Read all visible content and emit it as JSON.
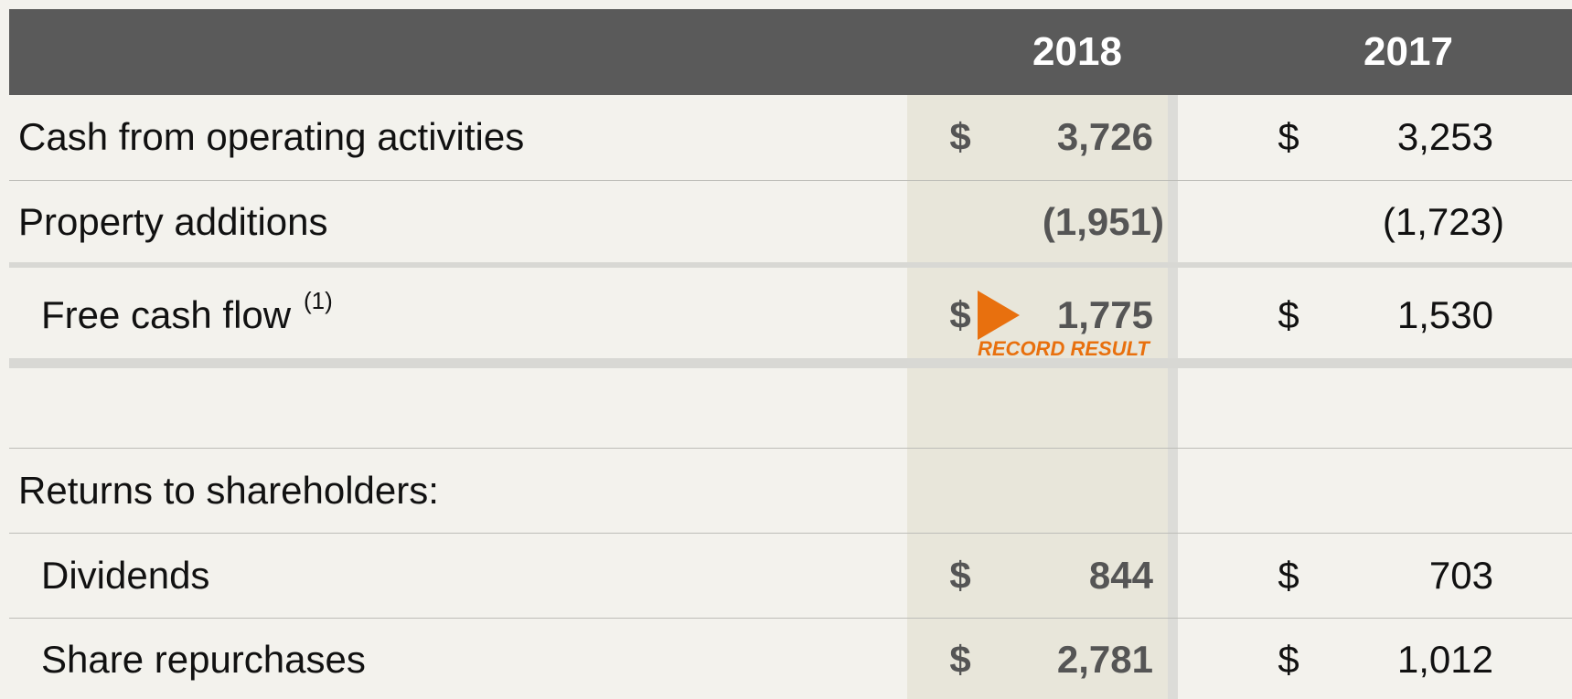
{
  "header": {
    "columns": [
      "2018",
      "2017"
    ]
  },
  "rows": [
    {
      "label": "Cash from operating activities",
      "cells": [
        {
          "currency": "$",
          "amount": "3,726"
        },
        {
          "currency": "$",
          "amount": "3,253"
        }
      ]
    },
    {
      "label": "Property additions",
      "cells": [
        {
          "amount": "(1,951)"
        },
        {
          "amount": "(1,723)"
        }
      ]
    },
    {
      "label": "Free cash flow",
      "footnote": "(1)",
      "annotation": "RECORD RESULT",
      "cells": [
        {
          "currency": "$",
          "amount": "1,775"
        },
        {
          "currency": "$",
          "amount": "1,530"
        }
      ]
    },
    {
      "label": "Returns to shareholders:"
    },
    {
      "label": "Dividends",
      "cells": [
        {
          "currency": "$",
          "amount": "844"
        },
        {
          "currency": "$",
          "amount": "703"
        }
      ]
    },
    {
      "label": "Share repurchases",
      "cells": [
        {
          "currency": "$",
          "amount": "2,781"
        },
        {
          "currency": "$",
          "amount": "1,012"
        }
      ]
    }
  ]
}
